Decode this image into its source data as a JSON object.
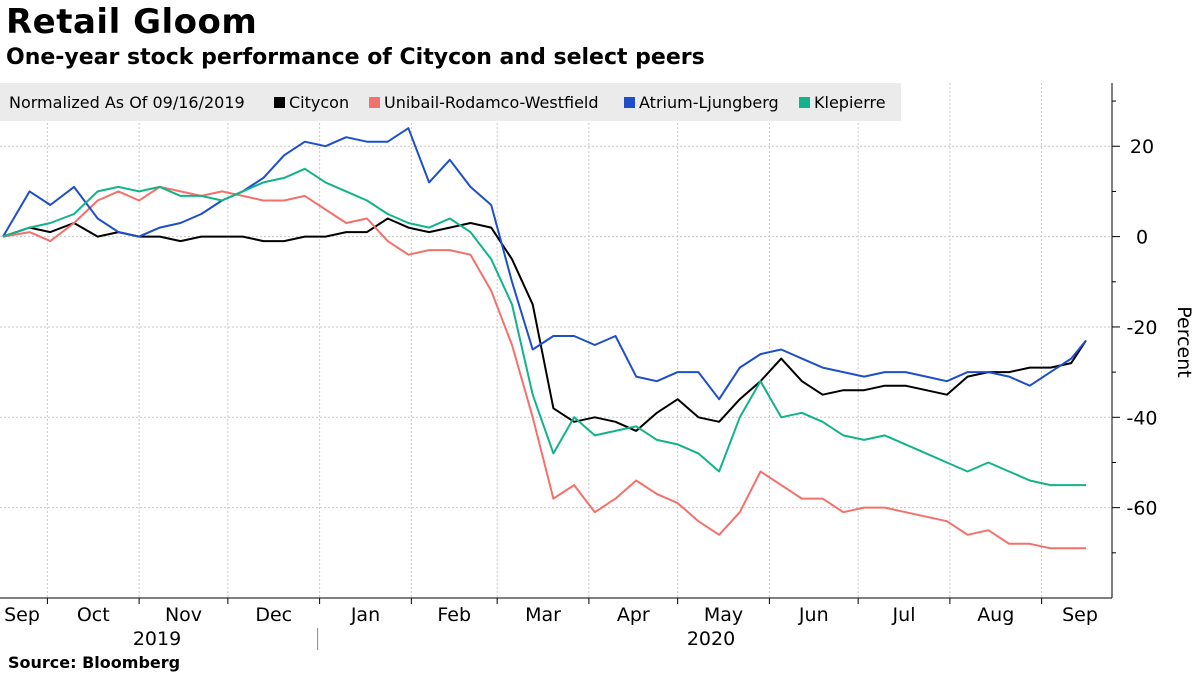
{
  "header": {
    "title": "Retail Gloom",
    "subtitle": "One-year stock performance of Citycon and select peers"
  },
  "footer": {
    "source": "Source: Bloomberg"
  },
  "chart_data": {
    "type": "line",
    "normalized_label": "Normalized As Of 09/16/2019",
    "ylabel": "Percent",
    "xlabel": "",
    "ylim": [
      -80,
      34
    ],
    "yticks": [
      20,
      0,
      -20,
      -40,
      -60
    ],
    "grid": true,
    "legend_position": "top-left",
    "x": [
      "2019-09-16",
      "2019-09-25",
      "2019-10-02",
      "2019-10-10",
      "2019-10-18",
      "2019-10-25",
      "2019-11-01",
      "2019-11-08",
      "2019-11-15",
      "2019-11-22",
      "2019-11-29",
      "2019-12-06",
      "2019-12-13",
      "2019-12-20",
      "2019-12-27",
      "2020-01-03",
      "2020-01-10",
      "2020-01-17",
      "2020-01-24",
      "2020-01-31",
      "2020-02-07",
      "2020-02-14",
      "2020-02-21",
      "2020-02-28",
      "2020-03-06",
      "2020-03-13",
      "2020-03-20",
      "2020-03-27",
      "2020-04-03",
      "2020-04-10",
      "2020-04-17",
      "2020-04-24",
      "2020-05-01",
      "2020-05-08",
      "2020-05-15",
      "2020-05-22",
      "2020-05-29",
      "2020-06-05",
      "2020-06-12",
      "2020-06-19",
      "2020-06-26",
      "2020-07-03",
      "2020-07-10",
      "2020-07-17",
      "2020-07-24",
      "2020-07-31",
      "2020-08-07",
      "2020-08-14",
      "2020-08-21",
      "2020-08-28",
      "2020-09-04",
      "2020-09-11",
      "2020-09-16"
    ],
    "x_month_labels": [
      "Sep",
      "Oct",
      "Nov",
      "Dec",
      "Jan",
      "Feb",
      "Mar",
      "Apr",
      "May",
      "Jun",
      "Jul",
      "Aug",
      "Sep"
    ],
    "x_year_labels": [
      "2019",
      "2020"
    ],
    "series": [
      {
        "name": "Citycon",
        "color": "#000000",
        "values": [
          0,
          2,
          1,
          3,
          0,
          1,
          0,
          0,
          -1,
          0,
          0,
          0,
          -1,
          -1,
          0,
          0,
          1,
          1,
          4,
          2,
          1,
          2,
          3,
          2,
          -5,
          -15,
          -38,
          -41,
          -40,
          -41,
          -43,
          -39,
          -36,
          -40,
          -41,
          -36,
          -32,
          -27,
          -32,
          -35,
          -34,
          -34,
          -33,
          -33,
          -34,
          -35,
          -31,
          -30,
          -30,
          -29,
          -29,
          -28,
          -23
        ]
      },
      {
        "name": "Unibail-Rodamco-Westfield",
        "color": "#f4716b",
        "values": [
          0,
          1,
          -1,
          3,
          8,
          10,
          8,
          11,
          10,
          9,
          10,
          9,
          8,
          8,
          9,
          6,
          3,
          4,
          -1,
          -4,
          -3,
          -3,
          -4,
          -12,
          -24,
          -40,
          -58,
          -55,
          -61,
          -58,
          -54,
          -57,
          -59,
          -63,
          -66,
          -61,
          -52,
          -55,
          -58,
          -58,
          -61,
          -60,
          -60,
          -61,
          -62,
          -63,
          -66,
          -65,
          -68,
          -68,
          -69,
          -69,
          -69
        ]
      },
      {
        "name": "Atrium-Ljungberg",
        "color": "#1d4fc9",
        "values": [
          0,
          10,
          7,
          11,
          4,
          1,
          0,
          2,
          3,
          5,
          8,
          10,
          13,
          18,
          21,
          20,
          22,
          21,
          21,
          24,
          12,
          17,
          11,
          7,
          -10,
          -25,
          -22,
          -22,
          -24,
          -22,
          -31,
          -32,
          -30,
          -30,
          -36,
          -29,
          -26,
          -25,
          -27,
          -29,
          -30,
          -31,
          -30,
          -30,
          -31,
          -32,
          -30,
          -30,
          -31,
          -33,
          -30,
          -27,
          -23
        ]
      },
      {
        "name": "Klepierre",
        "color": "#12b38a",
        "values": [
          0,
          2,
          3,
          5,
          10,
          11,
          10,
          11,
          9,
          9,
          8,
          10,
          12,
          13,
          15,
          12,
          10,
          8,
          5,
          3,
          2,
          4,
          1,
          -5,
          -15,
          -35,
          -48,
          -40,
          -44,
          -43,
          -42,
          -45,
          -46,
          -48,
          -52,
          -40,
          -32,
          -40,
          -39,
          -41,
          -44,
          -45,
          -44,
          -46,
          -48,
          -50,
          -52,
          -50,
          -52,
          -54,
          -55,
          -55,
          -55
        ]
      }
    ]
  }
}
